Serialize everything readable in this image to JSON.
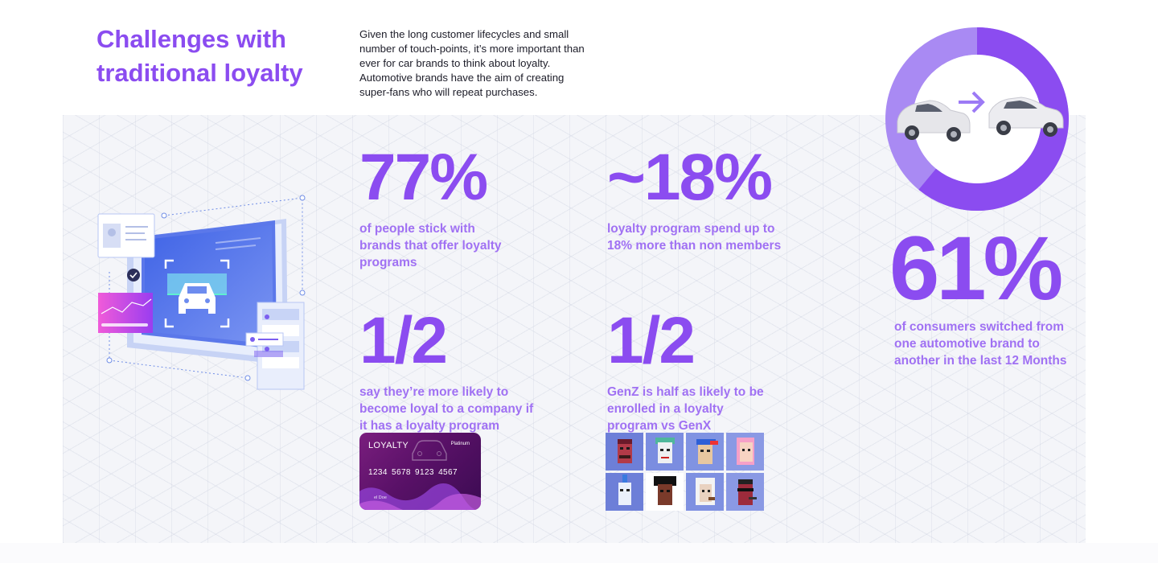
{
  "header": {
    "title": "Challenges with traditional loyalty",
    "intro": "Given the long customer lifecycles and small number of touch-points, it’s more important than ever for car brands to think about loyalty. Automotive brands have the aim of creating super-fans who will repeat purchases."
  },
  "stats": [
    {
      "value": "77%",
      "description": "of people stick with brands that offer loyalty programs"
    },
    {
      "value": "~18%",
      "description": "loyalty program spend up to 18% more than non members"
    },
    {
      "value": "1/2",
      "description": "say they’re more likely to become loyal to a company if it has a loyalty program"
    },
    {
      "value": "1/2",
      "description": "GenZ is half as likely to be enrolled in a loyalty program vs GenX"
    },
    {
      "value": "61%",
      "description": "of consumers switched from one automotive brand to another in the last 12 Months"
    }
  ],
  "donut": {
    "highlight_fraction": 0.61,
    "colors": {
      "main": "#8b4cf0",
      "light": "#a98af3",
      "arrow": "#9c7af5"
    }
  },
  "card": {
    "title": "LOYALTY",
    "tier": "Platinum",
    "number": "1234 5678 9123 4567",
    "holder": "el Doe"
  },
  "avatars": [
    {
      "icon": "pixel-avatar-1"
    },
    {
      "icon": "pixel-avatar-2"
    },
    {
      "icon": "pixel-avatar-3"
    },
    {
      "icon": "pixel-avatar-4"
    },
    {
      "icon": "pixel-avatar-5"
    },
    {
      "icon": "pixel-avatar-6"
    },
    {
      "icon": "pixel-avatar-7"
    },
    {
      "icon": "pixel-avatar-8"
    }
  ],
  "colors": {
    "accent": "#8b4cf0",
    "accent_light": "#a071f3",
    "body_text": "#1c1c28",
    "panel_bg": "#f4f5f9"
  }
}
